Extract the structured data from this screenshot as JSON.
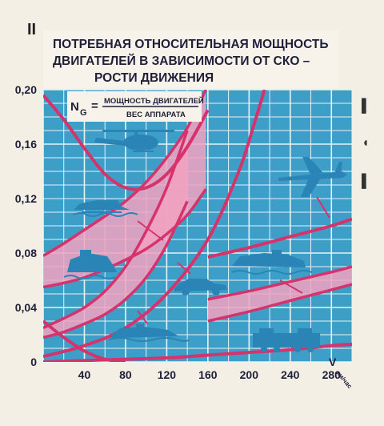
{
  "page": {
    "corner_mark": "II"
  },
  "chart_data": {
    "type": "line",
    "title_lines": [
      "ПОТРЕБНАЯ ОТНОСИТЕЛЬНАЯ   МОЩНОСТЬ",
      "ДВИГАТЕЛЕЙ В ЗАВИСИМОСТИ ОТ СКО –",
      "РОСТИ ДВИЖЕНИЯ"
    ],
    "formula": {
      "lhs": "N",
      "lhs_sub": "G",
      "eq": "=",
      "numerator": "МОЩНОСТЬ ДВИГАТЕЛЕЙ",
      "denominator": "ВЕС АППАРАТА"
    },
    "xlabel": "км/час",
    "xlabel_v": "V",
    "ylim": [
      0,
      0.2
    ],
    "xlim": [
      0,
      300
    ],
    "x_ticks": [
      "40",
      "80",
      "120",
      "160",
      "200",
      "240",
      "280"
    ],
    "x_tick_values": [
      40,
      80,
      120,
      160,
      200,
      240,
      280
    ],
    "y_ticks": [
      "0",
      "0,04",
      "0,08",
      "0,12",
      "0,16",
      "0,20"
    ],
    "y_tick_values": [
      0,
      0.04,
      0.08,
      0.12,
      0.16,
      0.2
    ],
    "grid": true,
    "colors": {
      "background": "#3d9ec8",
      "grid": "#e9f2f6",
      "curve": "#d6336c",
      "band": "#f2a2c0",
      "title_bg": "#f7f3ea",
      "title_text": "#1f1f3a",
      "silhouette": "#2a84b5",
      "pointer": "#d6336c"
    },
    "series": [
      {
        "icon": "helicopter-icon",
        "style": "line",
        "x": [
          0,
          20,
          40,
          60,
          80,
          100,
          120,
          140,
          160
        ],
        "y": [
          0.196,
          0.178,
          0.157,
          0.138,
          0.128,
          0.128,
          0.138,
          0.158,
          0.185
        ]
      },
      {
        "icon": "hydrofoil-icon",
        "style": "band",
        "x": [
          0,
          20,
          40,
          60,
          80,
          100,
          120,
          140,
          158
        ],
        "lo": [
          0.055,
          0.058,
          0.062,
          0.068,
          0.075,
          0.083,
          0.094,
          0.108,
          0.127
        ],
        "hi": [
          0.078,
          0.087,
          0.097,
          0.107,
          0.118,
          0.132,
          0.15,
          0.172,
          0.2
        ]
      },
      {
        "icon": "hovercraft-icon",
        "style": "band",
        "x": [
          0,
          20,
          40,
          60,
          80,
          100,
          120,
          140
        ],
        "lo": [
          0.018,
          0.022,
          0.028,
          0.035,
          0.046,
          0.062,
          0.086,
          0.118
        ],
        "hi": [
          0.025,
          0.032,
          0.04,
          0.052,
          0.07,
          0.096,
          0.128,
          0.17
        ]
      },
      {
        "icon": "car-icon",
        "style": "line",
        "x": [
          0,
          40,
          80,
          120,
          160,
          190,
          205,
          215
        ],
        "y": [
          0.004,
          0.012,
          0.025,
          0.05,
          0.09,
          0.14,
          0.175,
          0.2
        ]
      },
      {
        "icon": "ship-icon",
        "style": "band",
        "x": [
          160,
          200,
          240,
          280,
          300
        ],
        "lo": [
          0.03,
          0.037,
          0.045,
          0.053,
          0.057
        ],
        "hi": [
          0.046,
          0.052,
          0.059,
          0.066,
          0.07
        ]
      },
      {
        "icon": "airplane-icon",
        "style": "line",
        "x": [
          160,
          200,
          240,
          280,
          300
        ],
        "y": [
          0.077,
          0.084,
          0.092,
          0.1,
          0.105
        ]
      },
      {
        "icon": "locomotive-icon",
        "style": "line",
        "x": [
          0,
          40,
          80,
          120,
          160,
          200,
          240,
          280,
          300
        ],
        "y": [
          0.0,
          0.001,
          0.002,
          0.003,
          0.005,
          0.007,
          0.009,
          0.012,
          0.013
        ]
      },
      {
        "icon": "marsh-hovercraft-icon",
        "style": "line",
        "x": [
          0,
          20,
          40,
          60,
          80
        ],
        "y": [
          0.03,
          0.018,
          0.008,
          0.002,
          0.0
        ]
      }
    ]
  }
}
